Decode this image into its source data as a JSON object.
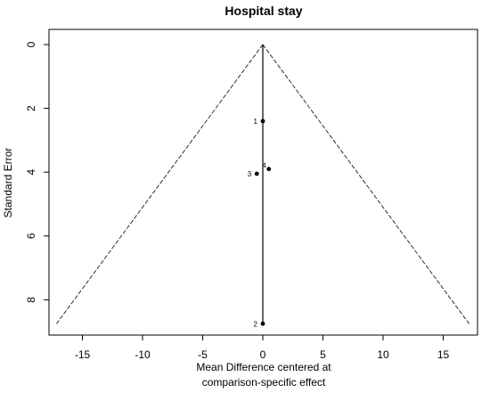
{
  "chart_data": {
    "type": "scatter",
    "title": "Hospital stay",
    "xlabel": [
      "Mean Difference centered at",
      "comparison-specific effect"
    ],
    "ylabel": "Standard Error",
    "xlim": [
      -18,
      18.5
    ],
    "ylim": [
      0,
      9
    ],
    "y_reversed": true,
    "y_ticks_rotated": true,
    "xticks": [
      -15,
      -10,
      -5,
      0,
      5,
      10,
      15
    ],
    "yticks": [
      0,
      2,
      4,
      6,
      8
    ],
    "points": [
      {
        "label": "1",
        "x": 0.0,
        "y": 2.4
      },
      {
        "label": "4",
        "x": 0.5,
        "y": 3.9
      },
      {
        "label": "3",
        "x": -0.5,
        "y": 4.05
      },
      {
        "label": "2",
        "x": 0.0,
        "y": 8.75
      }
    ],
    "funnel": {
      "apex": [
        0,
        0
      ],
      "base_y": 8.75,
      "base_half_width": 17.15,
      "line_style": "dashed"
    },
    "reference_line_x": 0
  }
}
